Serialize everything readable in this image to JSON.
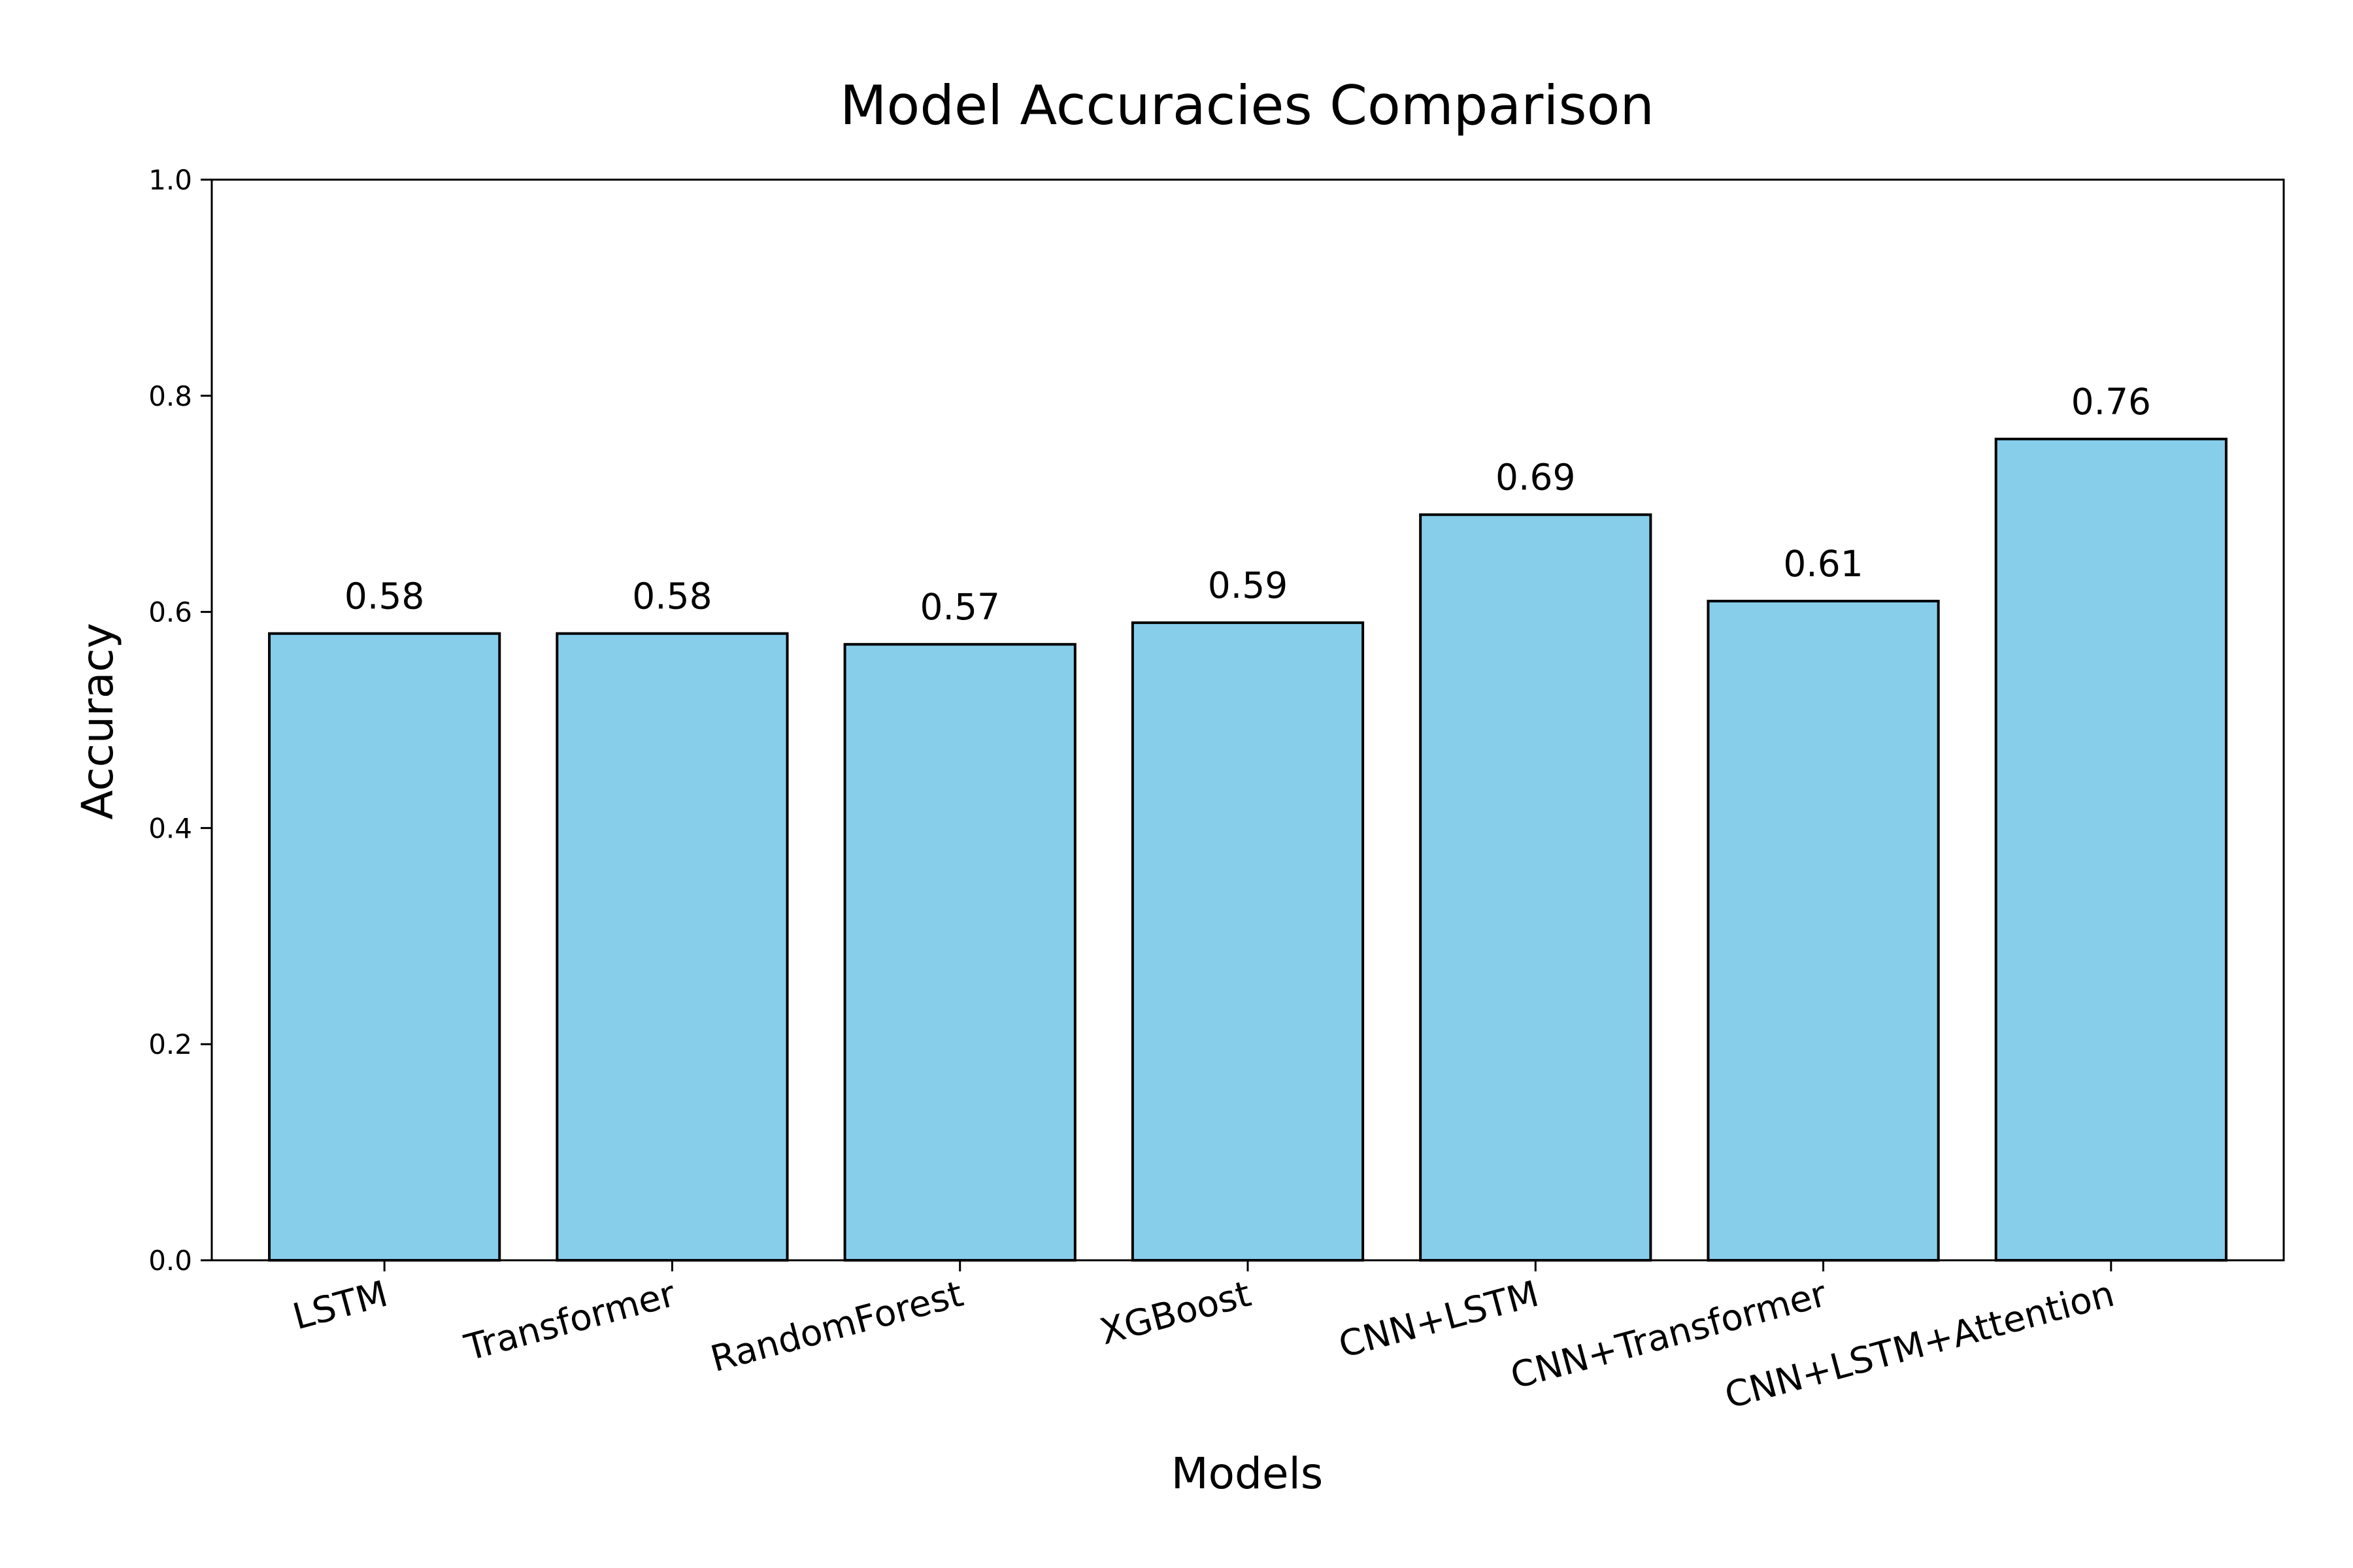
{
  "chart_data": {
    "type": "bar",
    "title": "Model Accuracies Comparison",
    "xlabel": "Models",
    "ylabel": "Accuracy",
    "categories": [
      "LSTM",
      "Transformer",
      "RandomForest",
      "XGBoost",
      "CNN+LSTM",
      "CNN+Transformer",
      "CNN+LSTM+Attention"
    ],
    "values": [
      0.58,
      0.58,
      0.57,
      0.59,
      0.69,
      0.61,
      0.76
    ],
    "value_labels": [
      "0.58",
      "0.58",
      "0.57",
      "0.59",
      "0.69",
      "0.61",
      "0.76"
    ],
    "ylim": [
      0,
      1.0
    ],
    "yticks": [
      0.0,
      0.2,
      0.4,
      0.6,
      0.8,
      1.0
    ],
    "ytick_labels": [
      "0.0",
      "0.2",
      "0.4",
      "0.6",
      "0.8",
      "1.0"
    ],
    "grid": false,
    "legend": "none",
    "bar_color": "#87CEEB",
    "bar_edge_color": "#000000"
  }
}
